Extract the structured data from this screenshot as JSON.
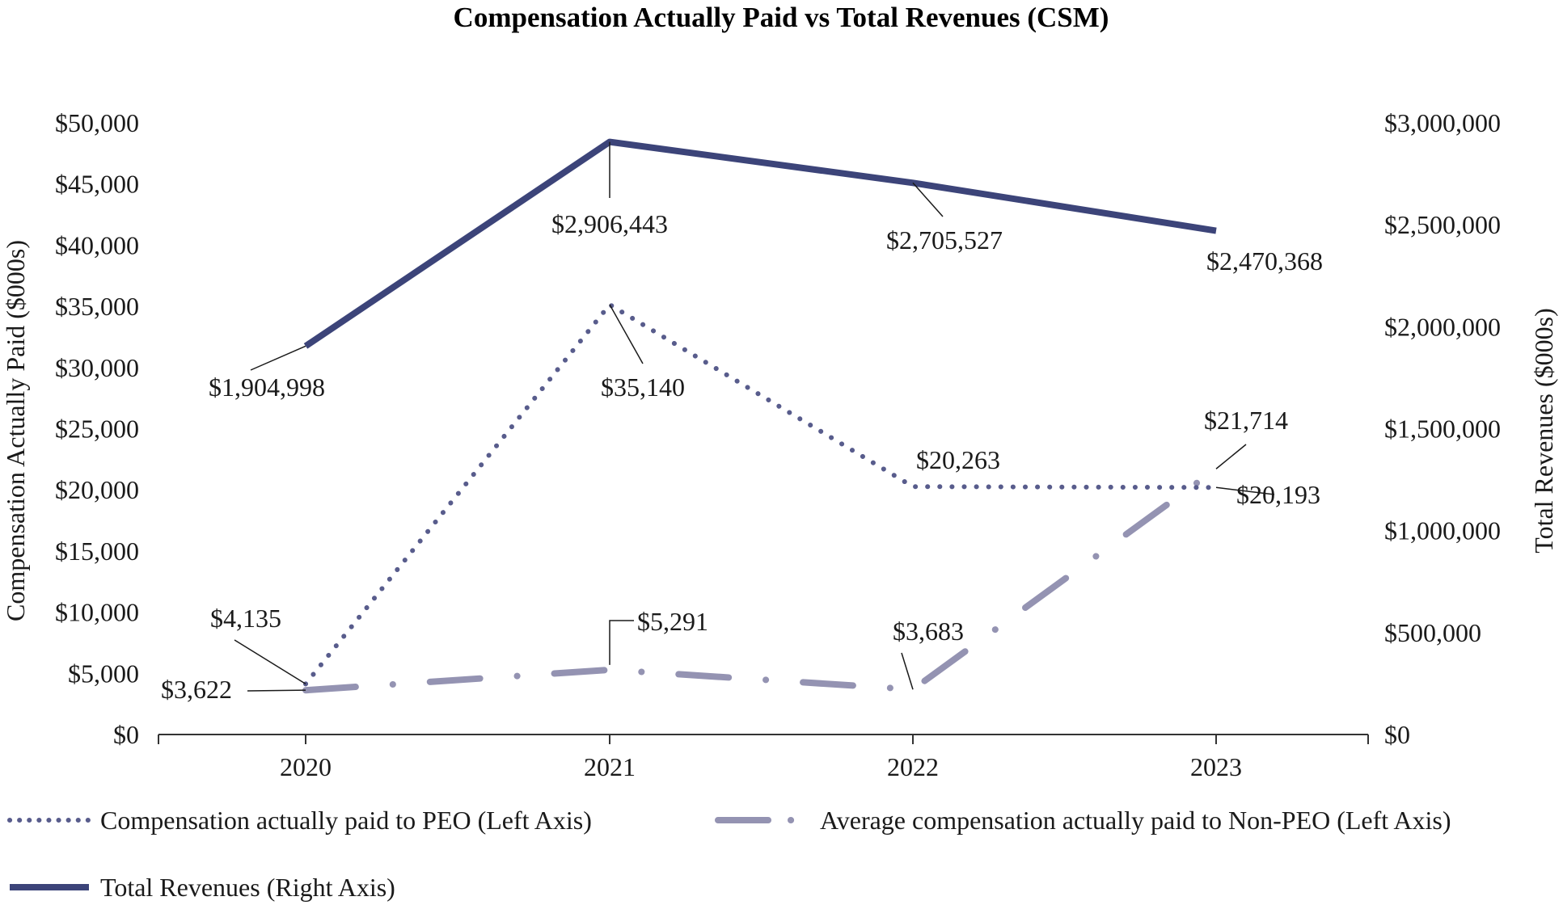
{
  "chart_data": {
    "type": "line",
    "title": "Compensation Actually Paid vs Total Revenues (CSM)",
    "categories": [
      "2020",
      "2021",
      "2022",
      "2023"
    ],
    "ylabel": "Compensation Actually Paid ($000s)",
    "y2label": "Total Revenues ($000s)",
    "ylim": [
      0,
      50000
    ],
    "y2lim": [
      0,
      3000000
    ],
    "y_ticks": [
      "$0",
      "$5,000",
      "$10,000",
      "$15,000",
      "$20,000",
      "$25,000",
      "$30,000",
      "$35,000",
      "$40,000",
      "$45,000",
      "$50,000"
    ],
    "y2_ticks": [
      "$0",
      "$500,000",
      "$1,000,000",
      "$1,500,000",
      "$2,000,000",
      "$2,500,000",
      "$3,000,000"
    ],
    "grid": false,
    "legend_position": "bottom",
    "series": [
      {
        "name": "Compensation actually paid to PEO (Left Axis)",
        "axis": "left",
        "style": "dotted",
        "color": "#585c8c",
        "values": [
          4135,
          35140,
          20263,
          20193
        ],
        "labels": [
          "$4,135",
          "$35,140",
          "$20,263",
          "$20,193"
        ]
      },
      {
        "name": "Average compensation actually paid to Non-PEO (Left Axis)",
        "axis": "left",
        "style": "dash-dot",
        "color": "#9493b2",
        "values": [
          3622,
          5291,
          3683,
          21714
        ],
        "labels": [
          "$3,622",
          "$5,291",
          "$3,683",
          "$21,714"
        ]
      },
      {
        "name": "Total Revenues (Right Axis)",
        "axis": "right",
        "style": "solid",
        "color": "#3c4479",
        "values": [
          1904998,
          2906443,
          2705527,
          2470368
        ],
        "labels": [
          "$1,904,998",
          "$2,906,443",
          "$2,705,527",
          "$2,470,368"
        ]
      }
    ]
  }
}
